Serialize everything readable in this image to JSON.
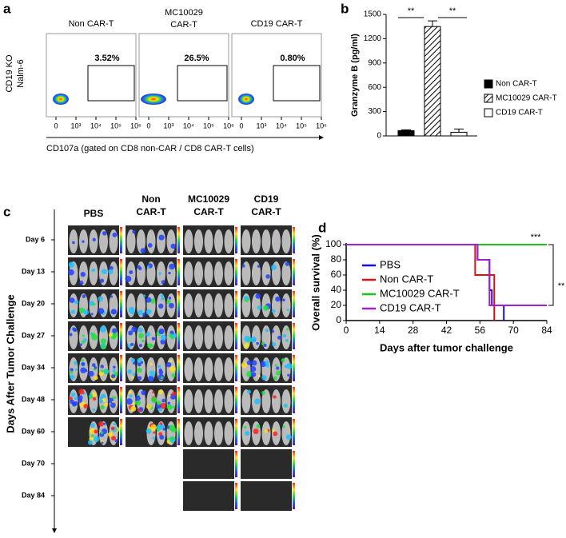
{
  "panel_labels": [
    "a",
    "b",
    "c",
    "d"
  ],
  "panel_a": {
    "y_label": [
      "CD19 KO",
      "Nalm-6"
    ],
    "plots": [
      {
        "title": [
          "Non CAR-T"
        ],
        "gate": "3.52%"
      },
      {
        "title": [
          "MC10029",
          "CAR-T"
        ],
        "gate": "26.5%"
      },
      {
        "title": [
          "CD19 CAR-T"
        ],
        "gate": "0.80%"
      }
    ],
    "x_ticks": [
      "0",
      "10³",
      "10⁴",
      "10⁵",
      "10⁶"
    ],
    "x_label": "CD107a (gated on CD8 non-CAR / CD8 CAR-T cells)"
  },
  "panel_c": {
    "columns": [
      [
        "PBS"
      ],
      [
        "Non",
        "CAR-T"
      ],
      [
        "MC10029",
        "CAR-T"
      ],
      [
        "CD19",
        "CAR-T"
      ]
    ],
    "rows": [
      "Day 6",
      "Day 13",
      "Day 20",
      "Day 27",
      "Day 34",
      "Day 48",
      "Day 60",
      "Day 70",
      "Day 84"
    ],
    "y_label": "Days After Tumor Challenge"
  },
  "chart_data": [
    {
      "type": "bar",
      "y_label": "Granzyme B (pg/ml)",
      "categories": [
        "Non CAR-T",
        "MC10029 CAR-T",
        "CD19 CAR-T"
      ],
      "values": [
        65,
        1350,
        45
      ],
      "errors": [
        10,
        70,
        40
      ],
      "colors": [
        "#000000",
        "#ffffff",
        "#ffffff"
      ],
      "hatch": [
        false,
        true,
        false
      ],
      "ylim": [
        0,
        1500
      ],
      "yticks": [
        0,
        300,
        600,
        900,
        1200,
        1500
      ],
      "annotations": [
        "**",
        "**"
      ],
      "legend": "right"
    },
    {
      "type": "line",
      "x_label": "Days after tumor challenge",
      "y_label": "Overall survival (%)",
      "xlim": [
        0,
        84
      ],
      "xticks": [
        0,
        14,
        28,
        42,
        56,
        70,
        84
      ],
      "ylim": [
        0,
        100
      ],
      "yticks": [
        0,
        20,
        40,
        60,
        80,
        100
      ],
      "legend": "center left",
      "annotations": [
        "***",
        "**"
      ],
      "series": [
        {
          "name": "PBS",
          "color": "#1010e0",
          "x": [
            0,
            55,
            55,
            60,
            60,
            61,
            61,
            66,
            66
          ],
          "values": [
            100,
            100,
            80,
            80,
            40,
            40,
            20,
            20,
            0
          ]
        },
        {
          "name": "Non CAR-T",
          "color": "#e01010",
          "x": [
            0,
            54,
            54,
            62,
            62
          ],
          "values": [
            100,
            100,
            60,
            60,
            0
          ]
        },
        {
          "name": "MC10029 CAR-T",
          "color": "#20c020",
          "x": [
            0,
            84
          ],
          "values": [
            100,
            100
          ]
        },
        {
          "name": "CD19 CAR-T",
          "color": "#a020d0",
          "x": [
            0,
            55,
            55,
            60,
            60,
            84
          ],
          "values": [
            100,
            100,
            80,
            80,
            20,
            20
          ]
        }
      ]
    }
  ]
}
